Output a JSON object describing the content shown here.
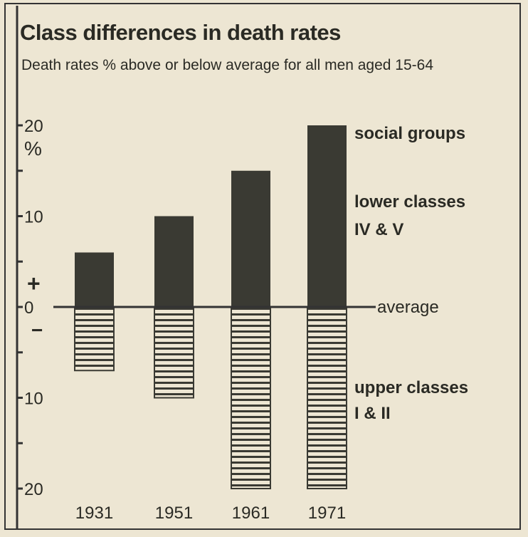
{
  "chart_data": {
    "type": "bar",
    "title": "Class differences in death rates",
    "subtitle": "Death rates % above or below average for all men aged 15-64",
    "categories": [
      "1931",
      "1951",
      "1961",
      "1971"
    ],
    "series": [
      {
        "name": "lower classes IV & V",
        "values": [
          6,
          10,
          15,
          20
        ],
        "fill": "solid",
        "color": "#3a3a33"
      },
      {
        "name": "upper classes I & II",
        "values": [
          -7,
          -10,
          -20,
          -20
        ],
        "fill": "horizontal-hatch",
        "color": "#3a3a33"
      }
    ],
    "ylim": [
      -20,
      20
    ],
    "yticks": [
      -20,
      -15,
      -10,
      -5,
      0,
      5,
      10,
      15,
      20
    ],
    "ytick_labels": {
      "20": "20",
      "10": "10",
      "0": "0",
      "-10": "10",
      "-20": "20"
    },
    "yunit": "%",
    "sign_labels": {
      "plus": "+",
      "minus": "−"
    },
    "reference_line": {
      "value": 0,
      "label": "average"
    },
    "annotations": [
      "social groups",
      "lower classes",
      "IV & V",
      "upper classes",
      "I & II"
    ],
    "background": "#ede6d3"
  }
}
